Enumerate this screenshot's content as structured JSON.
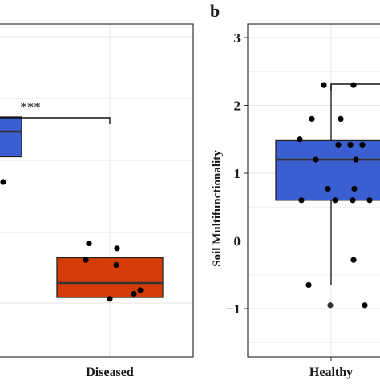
{
  "colors": {
    "healthy": "#3b5fd1",
    "diseased": "#d43d08",
    "panel_border": "#333333",
    "grid": "#e6e6e6",
    "point": "#000000",
    "median": "#333333"
  },
  "chart_data": [
    {
      "type": "boxplot",
      "panel": "a",
      "panel_label": "",
      "xlabel": "",
      "ylabel": "",
      "categories": [
        "Healthy",
        "Diseased"
      ],
      "category_labels_visible": [
        "",
        "Diseased"
      ],
      "ylim": [
        -2.5,
        2.5
      ],
      "y_ticks": [],
      "significance": "***",
      "boxes": [
        {
          "category": "Healthy",
          "color": "#3b5fd1",
          "q1": 0.85,
          "median": 1.2,
          "q3": 1.4
        },
        {
          "category": "Diseased",
          "color": "#d43d08",
          "q1": -1.1,
          "median": -0.9,
          "q3": -0.55,
          "whisker_low": -1.1,
          "whisker_high": -0.55
        }
      ],
      "points": [
        {
          "category": "Healthy",
          "y": 0.5
        },
        {
          "category": "Diseased",
          "y": -0.35
        },
        {
          "category": "Diseased",
          "y": -0.42
        },
        {
          "category": "Diseased",
          "y": -0.65
        },
        {
          "category": "Diseased",
          "y": -0.58
        },
        {
          "category": "Diseased",
          "y": -1.0
        },
        {
          "category": "Diseased",
          "y": -1.05
        },
        {
          "category": "Diseased",
          "y": -1.12
        }
      ]
    },
    {
      "type": "boxplot",
      "panel": "b",
      "panel_label": "b",
      "xlabel": "",
      "ylabel": "Soil Multifunctionality",
      "categories": [
        "Healthy",
        "Diseased"
      ],
      "category_labels_visible": [
        "Healthy",
        ""
      ],
      "ylim": [
        -1.7,
        3.2
      ],
      "y_ticks": [
        -1,
        0,
        1,
        2,
        3
      ],
      "y_tick_labels": [
        "−1",
        "0",
        "1",
        "2",
        "3"
      ],
      "boxes": [
        {
          "category": "Healthy",
          "color": "#3b5fd1",
          "q1": 0.6,
          "median": 1.2,
          "q3": 1.48,
          "whisker_low": -0.65,
          "whisker_high": 2.3
        }
      ],
      "points": [
        {
          "category": "Healthy",
          "y": 2.3
        },
        {
          "category": "Healthy",
          "y": 2.3
        },
        {
          "category": "Healthy",
          "y": 1.8
        },
        {
          "category": "Healthy",
          "y": 1.8
        },
        {
          "category": "Healthy",
          "y": 1.5
        },
        {
          "category": "Healthy",
          "y": 1.42
        },
        {
          "category": "Healthy",
          "y": 1.42
        },
        {
          "category": "Healthy",
          "y": 1.42
        },
        {
          "category": "Healthy",
          "y": 1.2
        },
        {
          "category": "Healthy",
          "y": 1.2
        },
        {
          "category": "Healthy",
          "y": 0.77
        },
        {
          "category": "Healthy",
          "y": 0.77
        },
        {
          "category": "Healthy",
          "y": 0.6
        },
        {
          "category": "Healthy",
          "y": 0.6
        },
        {
          "category": "Healthy",
          "y": 0.6
        },
        {
          "category": "Healthy",
          "y": 0.6
        },
        {
          "category": "Healthy",
          "y": -0.28
        },
        {
          "category": "Healthy",
          "y": -0.65
        },
        {
          "category": "Healthy",
          "y": -0.95
        },
        {
          "category": "Diseased",
          "y": -0.95
        }
      ]
    }
  ]
}
